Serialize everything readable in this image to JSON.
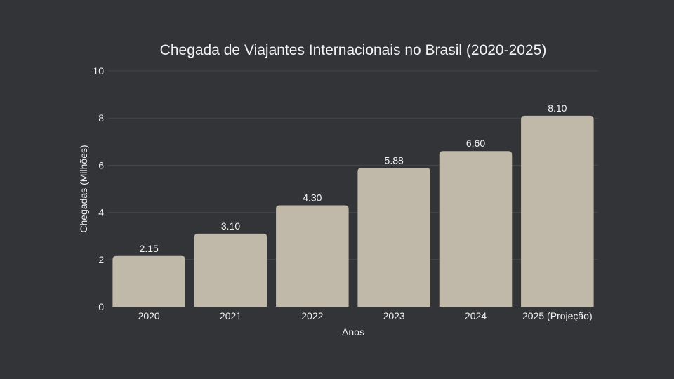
{
  "chart_data": {
    "type": "bar",
    "title": "Chegada de Viajantes Internacionais no Brasil (2020-2025)",
    "xlabel": "Anos",
    "ylabel": "Chegadas (Milhões)",
    "categories": [
      "2020",
      "2021",
      "2022",
      "2023",
      "2024",
      "2025 (Projeção)"
    ],
    "values": [
      2.15,
      3.1,
      4.3,
      5.88,
      6.6,
      8.1
    ],
    "value_labels": [
      "2.15",
      "3.10",
      "4.30",
      "5.88",
      "6.60",
      "8.10"
    ],
    "ylim": [
      0,
      10
    ],
    "yticks": [
      0,
      2,
      4,
      6,
      8,
      10
    ],
    "ytick_labels": [
      "0",
      "2",
      "4",
      "6",
      "8",
      "10"
    ],
    "grid": true,
    "legend": "none"
  },
  "colors": {
    "background": "#333438",
    "bar": "#c0b8a8",
    "grid": "#45464b",
    "text": "#f0f0f0"
  }
}
